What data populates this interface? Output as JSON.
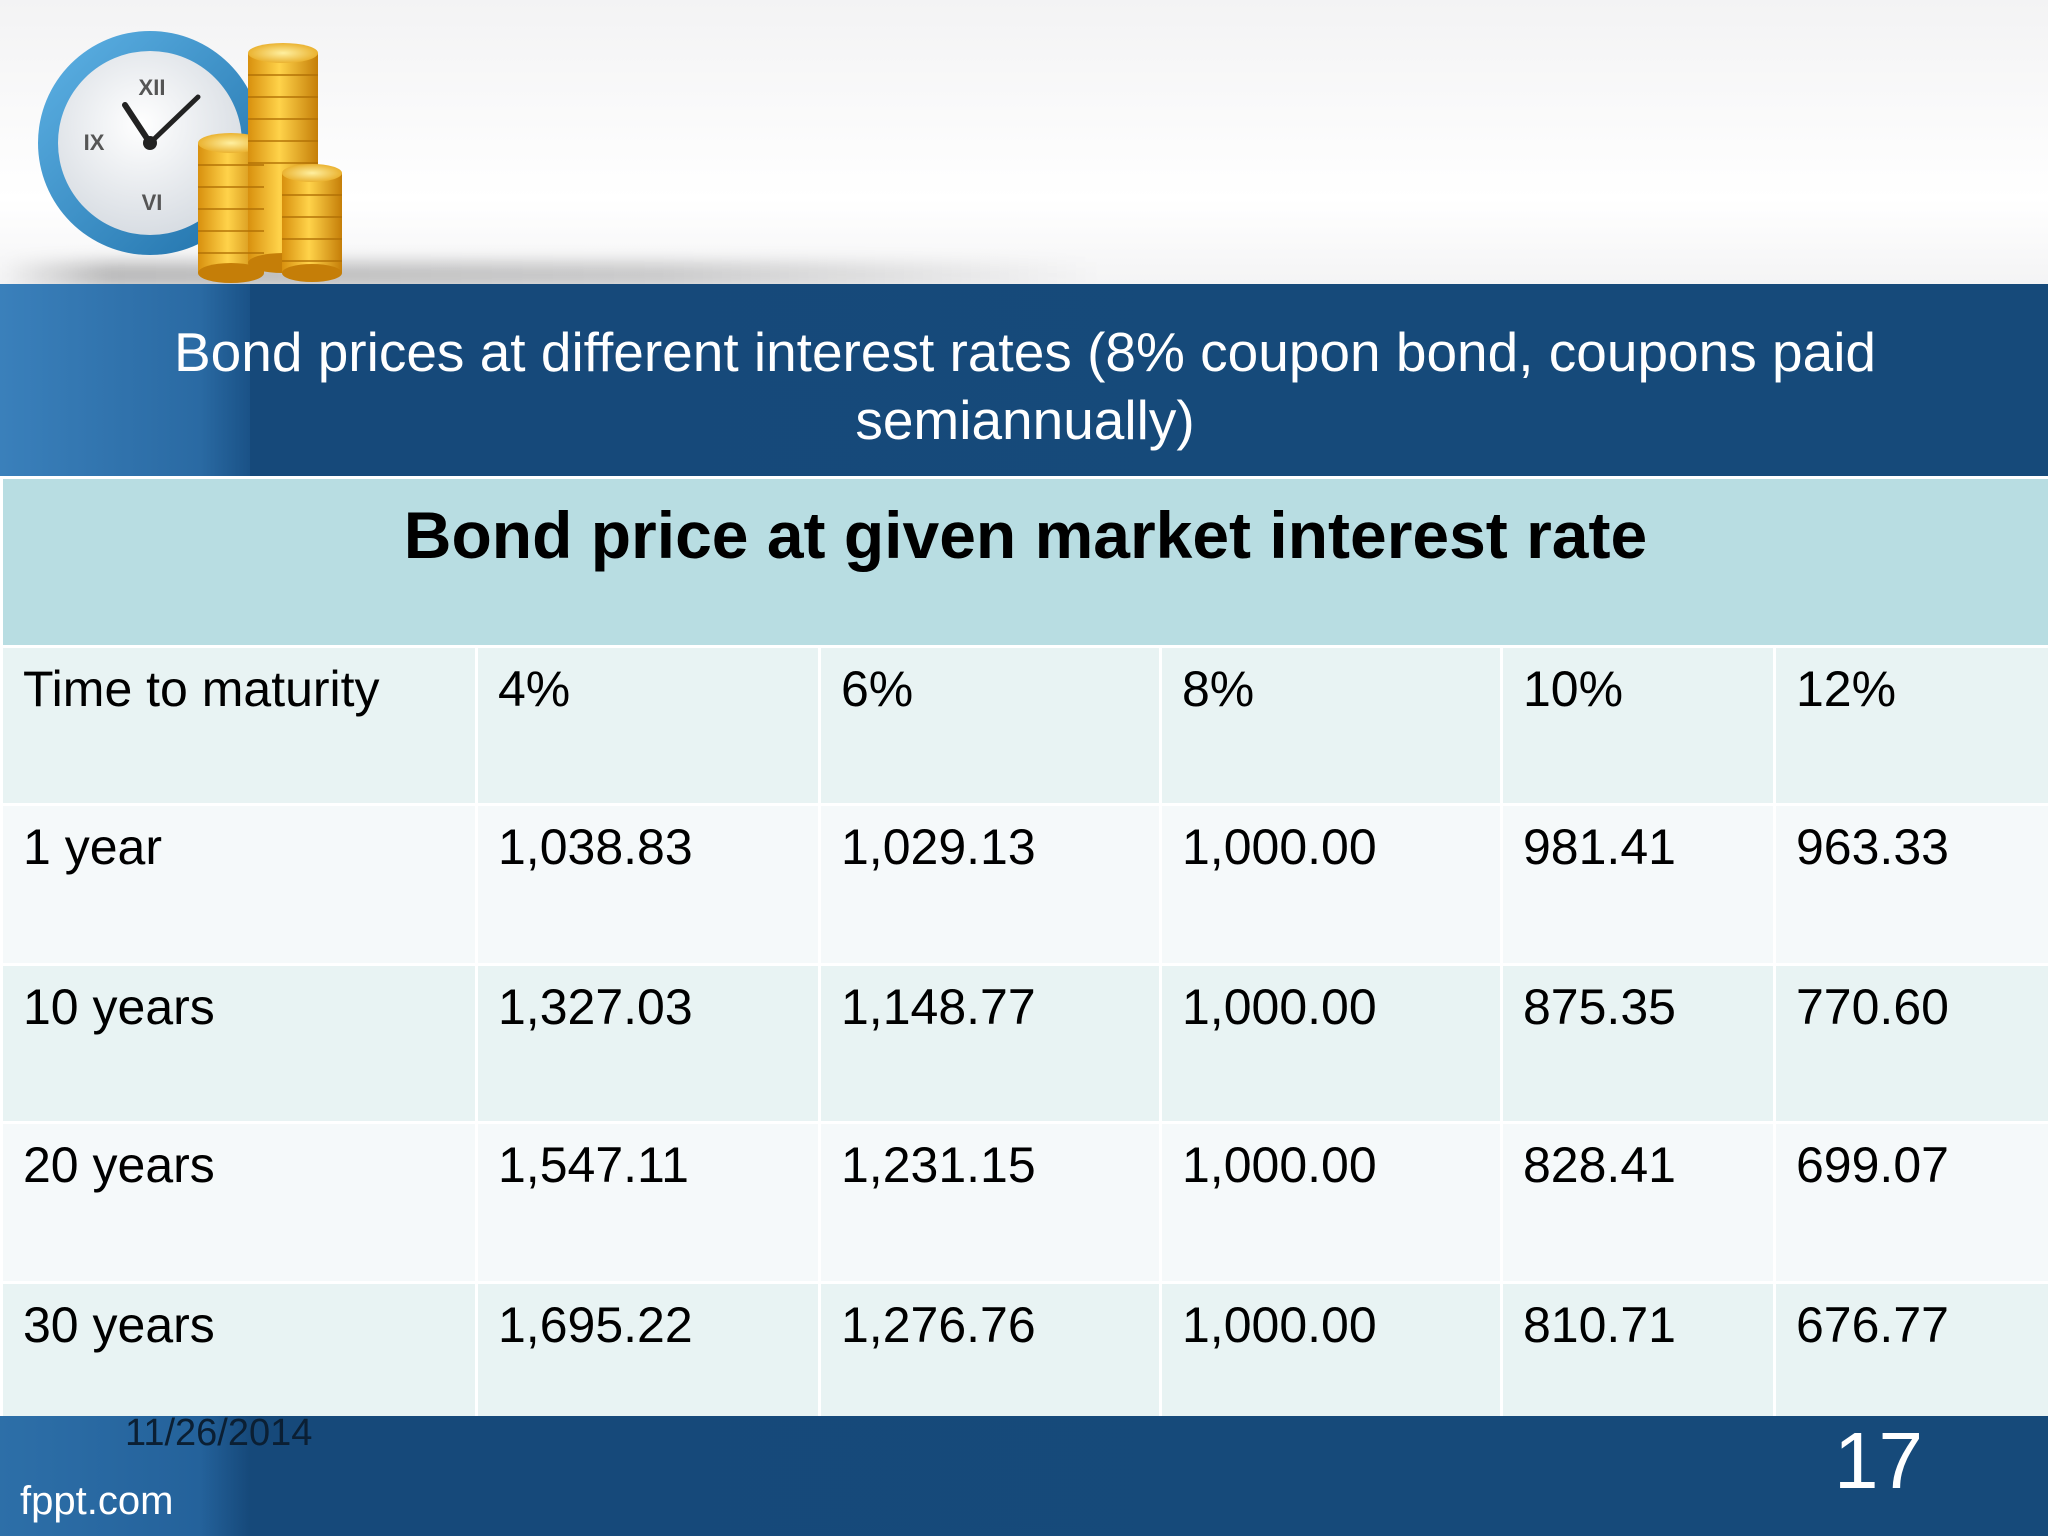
{
  "slide": {
    "title": "Bond prices at different interest rates (8% coupon bond, coupons paid semiannually)"
  },
  "table": {
    "header": "Bond price at given market interest rate",
    "columns": [
      "Time to maturity",
      "4%",
      "6%",
      "8%",
      "10%",
      "12%"
    ],
    "rows": [
      [
        "1 year",
        "1,038.83",
        "1,029.13",
        "1,000.00",
        "981.41",
        "963.33"
      ],
      [
        "10 years",
        "1,327.03",
        "1,148.77",
        "1,000.00",
        "875.35",
        "770.60"
      ],
      [
        "20 years",
        "1,547.11",
        "1,231.15",
        "1,000.00",
        "828.41",
        "699.07"
      ],
      [
        "30 years",
        "1,695.22",
        "1,276.76",
        "1,000.00",
        "810.71",
        "676.77"
      ]
    ]
  },
  "footer": {
    "date": "11/26/2014",
    "brand": "fppt.com",
    "page_number": "17"
  },
  "logo": {
    "icon": "clock-and-coins-icon",
    "clock_numerals": [
      "XII",
      "IX",
      "VI"
    ]
  },
  "colors": {
    "band_blue": "#164a7a",
    "header_teal": "#b8dde2",
    "row_light": "#e8f3f3",
    "row_lighter": "#f5f9fa"
  }
}
